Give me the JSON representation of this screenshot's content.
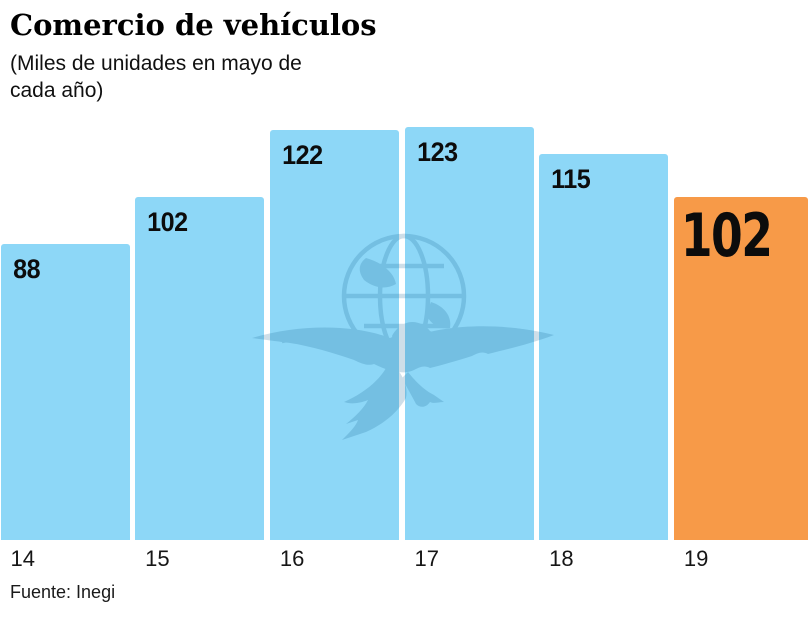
{
  "header": {
    "title": "Comercio de vehículos",
    "subtitle": "(Miles de unidades en mayo de cada año)"
  },
  "source": {
    "label": "Fuente: Inegi"
  },
  "watermark_icon": "eagle-over-globe",
  "chart_data": {
    "type": "bar",
    "categories": [
      "14",
      "15",
      "16",
      "17",
      "18",
      "19"
    ],
    "values": [
      88,
      102,
      122,
      123,
      115,
      102
    ],
    "title": "Comercio de vehículos",
    "subtitle": "(Miles de unidades en mayo de cada año)",
    "xlabel": "",
    "ylabel": "",
    "ylim": [
      0,
      129
    ],
    "unit": "miles de unidades",
    "grid": false,
    "legend": false,
    "value_labels_position": "inside-top-left",
    "highlight_index": 5,
    "colors": {
      "bar": "#8DD7F7",
      "highlight": "#F79A48",
      "label": "#0C0C0C",
      "watermark": "#1D6A96"
    },
    "source": "Fuente: Inegi"
  }
}
